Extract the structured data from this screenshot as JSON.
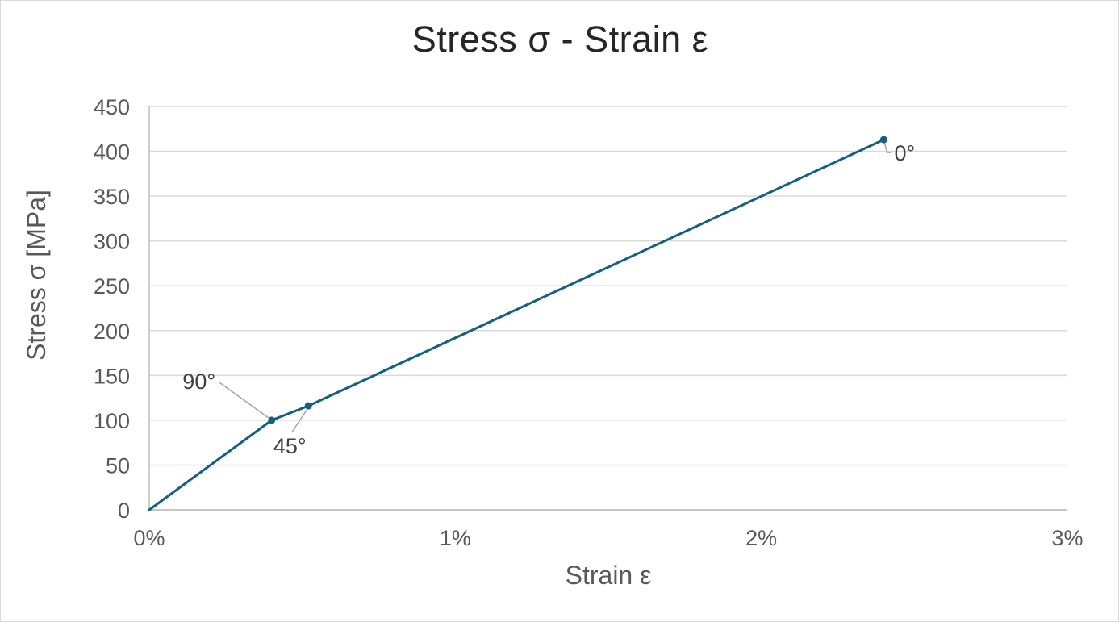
{
  "chart": {
    "title": "Stress σ - Strain ε",
    "x_axis_title": "Strain ε",
    "y_axis_title": "Stress σ [MPa]"
  },
  "chart_data": {
    "type": "line",
    "title": "Stress σ - Strain ε",
    "xlabel": "Strain ε",
    "ylabel": "Stress σ [MPa]",
    "xlim": [
      0,
      3
    ],
    "ylim": [
      0,
      450
    ],
    "x_unit": "percent",
    "x_tick_labels": [
      "0%",
      "1%",
      "2%",
      "3%"
    ],
    "x_tick_values": [
      0,
      1,
      2,
      3
    ],
    "y_tick_labels": [
      "0",
      "50",
      "100",
      "150",
      "200",
      "250",
      "300",
      "350",
      "400",
      "450"
    ],
    "y_tick_values": [
      0,
      50,
      100,
      150,
      200,
      250,
      300,
      350,
      400,
      450
    ],
    "grid": "horizontal",
    "legend": "none",
    "series": [
      {
        "name": "stress-strain-curve",
        "color": "#156082",
        "points": [
          {
            "x": 0,
            "y": 0,
            "label": null,
            "marker": false
          },
          {
            "x": 0.4,
            "y": 100,
            "label": "90°",
            "marker": true
          },
          {
            "x": 0.52,
            "y": 116,
            "label": "45°",
            "marker": true
          },
          {
            "x": 2.4,
            "y": 413,
            "label": "0°",
            "marker": true
          }
        ]
      }
    ]
  },
  "colors": {
    "series": "#156082",
    "gridline": "#d9d9d9",
    "axis_line": "#bfbfbf",
    "tick_text": "#595959",
    "title_text": "#262626",
    "axis_title_text": "#595959",
    "data_label_text": "#404040",
    "leader_line": "#a6a6a6",
    "background": "#ffffff"
  }
}
